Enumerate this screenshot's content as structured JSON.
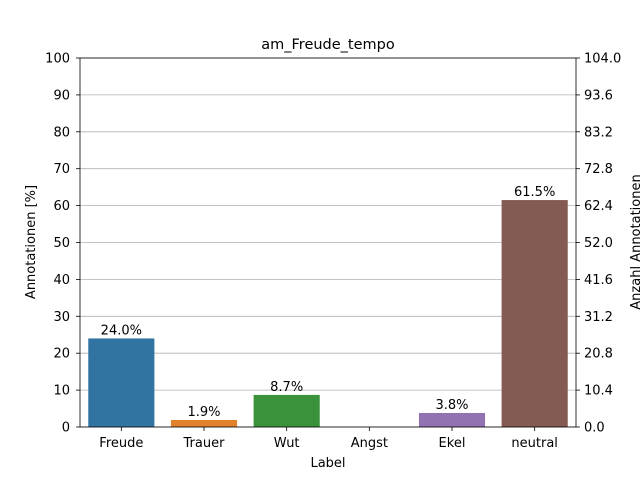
{
  "chart_data": {
    "type": "bar",
    "title": "am_Freude_tempo",
    "xlabel": "Label",
    "ylabel": "Annotationen [%]",
    "ylabel_right": "Anzahl Annotationen",
    "categories": [
      "Freude",
      "Trauer",
      "Wut",
      "Angst",
      "Ekel",
      "neutral"
    ],
    "values": [
      24.0,
      1.9,
      8.7,
      0.0,
      3.8,
      61.5
    ],
    "value_labels": [
      "24.0%",
      "1.9%",
      "8.7%",
      "",
      "3.8%",
      "61.5%"
    ],
    "colors": [
      "#3274a1",
      "#e1812c",
      "#3a923a",
      "#c03d3e",
      "#9372b2",
      "#845b53"
    ],
    "ylim": [
      0,
      100
    ],
    "yticks": [
      "0",
      "10",
      "20",
      "30",
      "40",
      "50",
      "60",
      "70",
      "80",
      "90",
      "100"
    ],
    "ylim_right": [
      0,
      104.0
    ],
    "yticks_right": [
      "0.0",
      "10.4",
      "20.8",
      "31.2",
      "41.6",
      "52.0",
      "62.4",
      "72.8",
      "83.2",
      "93.6",
      "104.0"
    ],
    "grid": "horizontal",
    "legend": "none"
  }
}
